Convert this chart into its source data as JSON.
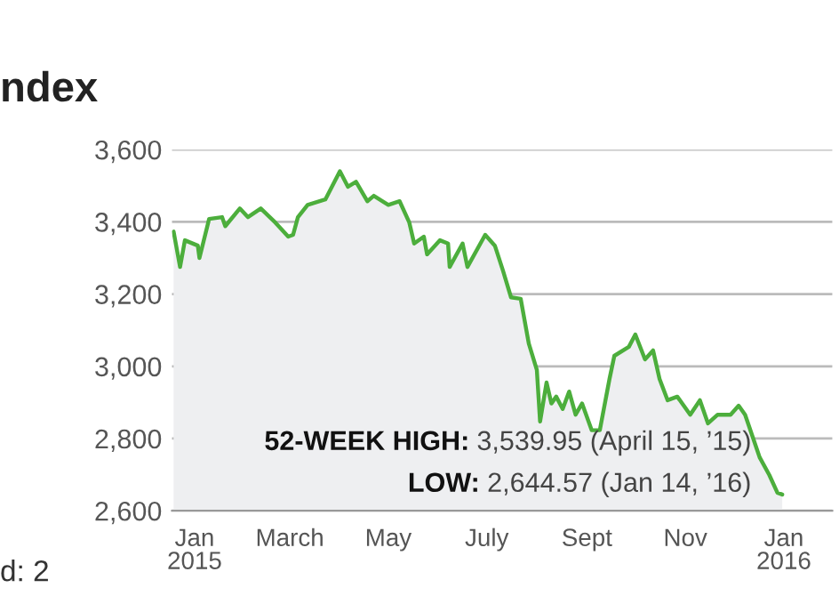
{
  "chart_data": {
    "type": "area",
    "title": "ndex",
    "x": [
      "2015-01-02",
      "2015-01-06",
      "2015-01-09",
      "2015-01-17",
      "2015-01-18",
      "2015-01-24",
      "2015-02-01",
      "2015-02-03",
      "2015-02-12",
      "2015-02-17",
      "2015-02-25",
      "2015-03-06",
      "2015-03-14",
      "2015-03-17",
      "2015-03-20",
      "2015-03-26",
      "2015-04-06",
      "2015-04-15",
      "2015-04-20",
      "2015-04-25",
      "2015-05-02",
      "2015-05-06",
      "2015-05-15",
      "2015-05-22",
      "2015-05-28",
      "2015-05-31",
      "2015-06-06",
      "2015-06-08",
      "2015-06-16",
      "2015-06-21",
      "2015-06-22",
      "2015-06-30",
      "2015-07-03",
      "2015-07-14",
      "2015-07-20",
      "2015-07-25",
      "2015-07-30",
      "2015-08-05",
      "2015-08-10",
      "2015-08-15",
      "2015-08-17",
      "2015-08-21",
      "2015-08-24",
      "2015-08-27",
      "2015-08-31",
      "2015-09-04",
      "2015-09-08",
      "2015-09-12",
      "2015-09-18",
      "2015-09-23",
      "2015-09-29",
      "2015-10-02",
      "2015-10-11",
      "2015-10-15",
      "2015-10-21",
      "2015-10-26",
      "2015-10-30",
      "2015-11-04",
      "2015-11-10",
      "2015-11-18",
      "2015-11-24",
      "2015-11-29",
      "2015-12-05",
      "2015-12-13",
      "2015-12-18",
      "2015-12-22",
      "2015-12-31",
      "2016-01-06",
      "2016-01-11",
      "2016-01-14"
    ],
    "series": [
      {
        "color": "#4cae3c",
        "values": [
          3373,
          3275,
          3349,
          3334,
          3300,
          3408,
          3413,
          3388,
          3437,
          3413,
          3437,
          3398,
          3359,
          3364,
          3413,
          3447,
          3462,
          3540,
          3497,
          3511,
          3457,
          3472,
          3447,
          3457,
          3398,
          3340,
          3359,
          3310,
          3349,
          3340,
          3275,
          3340,
          3275,
          3364,
          3334,
          3265,
          3191,
          3187,
          3063,
          2990,
          2847,
          2955,
          2897,
          2916,
          2882,
          2930,
          2866,
          2897,
          2823,
          2823,
          2965,
          3029,
          3054,
          3088,
          3019,
          3044,
          2965,
          2906,
          2916,
          2866,
          2906,
          2842,
          2866,
          2866,
          2891,
          2866,
          2748,
          2699,
          2650,
          2645
        ]
      }
    ],
    "xlim": [
      "2015-01-01",
      "2016-02-14"
    ],
    "xticks": [
      {
        "value": "2015-01-15",
        "label": "Jan\n2015"
      },
      {
        "value": "2015-03-15",
        "label": "March"
      },
      {
        "value": "2015-05-15",
        "label": "May"
      },
      {
        "value": "2015-07-15",
        "label": "July"
      },
      {
        "value": "2015-09-15",
        "label": "Sept"
      },
      {
        "value": "2015-11-15",
        "label": "Nov"
      },
      {
        "value": "2016-01-15",
        "label": "Jan\n2016"
      }
    ],
    "ylim": [
      2600,
      3600
    ],
    "yticks": [
      {
        "value": 2600,
        "label": "2,600"
      },
      {
        "value": 2800,
        "label": "2,800"
      },
      {
        "value": 3000,
        "label": "3,000"
      },
      {
        "value": 3200,
        "label": "3,200"
      },
      {
        "value": 3400,
        "label": "3,400"
      },
      {
        "value": 3600,
        "label": "3,600"
      }
    ],
    "grid": "y",
    "annotations": [
      "52-WEEK HIGH: 3,539.95 (April 15, ’15)",
      "LOW: 2,644.57 (Jan 14, ’16)",
      "d: 2"
    ]
  }
}
